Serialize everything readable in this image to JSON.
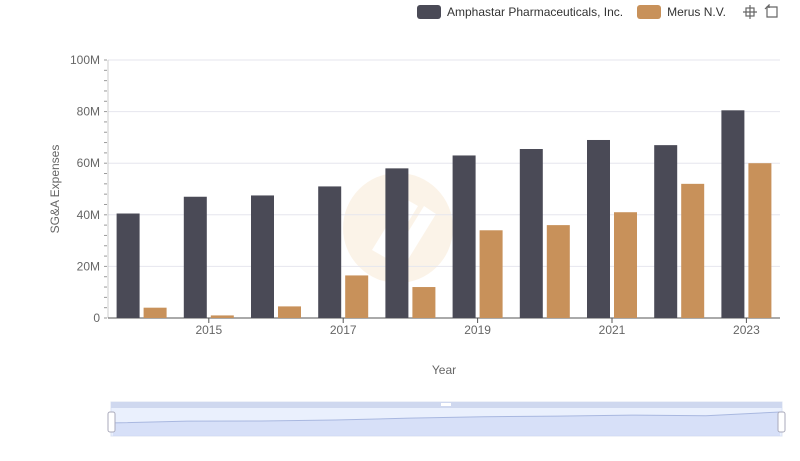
{
  "legend": {
    "series_0": "Amphastar Pharmaceuticals, Inc.",
    "series_1": "Merus N.V."
  },
  "toolbar": {
    "zoom_icon": "crosshair-zoom-icon",
    "reset_icon": "reset-zoom-icon"
  },
  "colors": {
    "series_0": "#4a4a56",
    "series_1": "#c8915a",
    "grid": "#e6e6ee",
    "axis": "#555555",
    "zoom_fill": "#d6e1fb"
  },
  "chart_data": {
    "type": "bar",
    "title": "",
    "xlabel": "Year",
    "ylabel": "SG&A Expenses",
    "categories": [
      "2014",
      "2015",
      "2016",
      "2017",
      "2018",
      "2019",
      "2020",
      "2021",
      "2022",
      "2023"
    ],
    "x_tick_labels": [
      "2015",
      "2017",
      "2019",
      "2021",
      "2023"
    ],
    "y_tick_labels": [
      "0",
      "20M",
      "40M",
      "60M",
      "80M",
      "100M"
    ],
    "ylim": [
      0,
      100000000
    ],
    "grid": true,
    "legend_position": "top-right",
    "series": [
      {
        "name": "Amphastar Pharmaceuticals, Inc.",
        "values": [
          40500000,
          47000000,
          47500000,
          51000000,
          58000000,
          63000000,
          65500000,
          69000000,
          67000000,
          80500000
        ]
      },
      {
        "name": "Merus N.V.",
        "values": [
          4000000,
          1000000,
          4500000,
          16500000,
          12000000,
          34000000,
          36000000,
          41000000,
          52000000,
          60000000
        ]
      }
    ]
  }
}
